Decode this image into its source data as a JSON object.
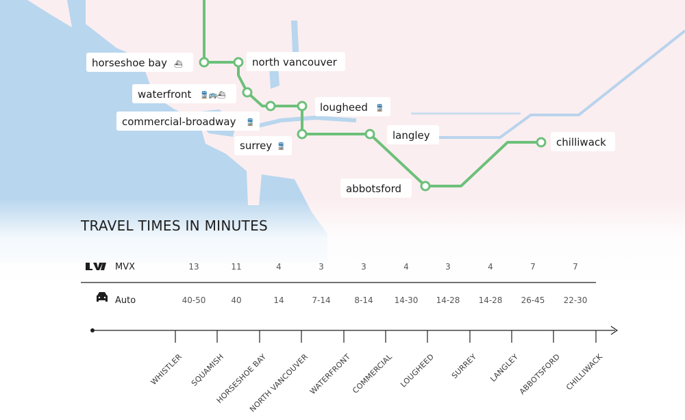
{
  "map": {
    "stations": [
      {
        "label": "horseshoe bay",
        "icon": "ferry-icon",
        "glyph": "⛴"
      },
      {
        "label": "north vancouver",
        "icon": "",
        "glyph": ""
      },
      {
        "label": "waterfront",
        "icon": "train-bus-ferry-icon",
        "glyph": "🚆🚌⛴"
      },
      {
        "label": "commercial-broadway",
        "icon": "train-icon",
        "glyph": "🚆"
      },
      {
        "label": "lougheed",
        "icon": "train-icon",
        "glyph": "🚆"
      },
      {
        "label": "surrey",
        "icon": "train-icon",
        "glyph": "🚆"
      },
      {
        "label": "langley",
        "icon": "",
        "glyph": ""
      },
      {
        "label": "abbotsford",
        "icon": "",
        "glyph": ""
      },
      {
        "label": "chilliwack",
        "icon": "",
        "glyph": ""
      }
    ],
    "colors": {
      "water": "#b8d6ee",
      "land": "#fbeef0",
      "route": "#6cc07a",
      "rail": "#b9d3ec"
    }
  },
  "travel": {
    "title": "TRAVEL TIMES IN MINUTES",
    "rows": [
      {
        "name": "MVX",
        "icon": "mvx-logo-icon",
        "values": [
          "13",
          "11",
          "4",
          "3",
          "3",
          "4",
          "3",
          "4",
          "7",
          "7"
        ]
      },
      {
        "name": "Auto",
        "icon": "car-icon",
        "values": [
          "40-50",
          "40",
          "14",
          "7-14",
          "8-14",
          "14-30",
          "14-28",
          "14-28",
          "26-45",
          "22-30"
        ]
      }
    ],
    "stops": [
      "WHISTLER",
      "SQUAMISH",
      "HORSESHOE BAY",
      "NORTH VANCOUVER",
      "WATERFRONT",
      "COMMERCIAL",
      "LOUGHEED",
      "SURREY",
      "LANGLEY",
      "ABBOTSFORD",
      "CHILLIWACK"
    ]
  }
}
